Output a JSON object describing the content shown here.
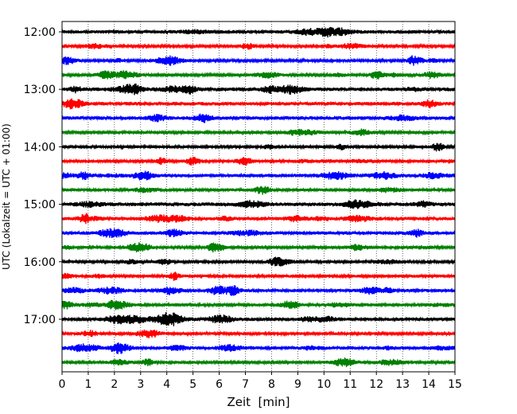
{
  "chart_data": {
    "type": "line",
    "title": "",
    "xlabel": "Zeit  [min]",
    "ylabel": "UTC (Lokalzeit = UTC + 01:00)",
    "xlim": [
      0,
      15
    ],
    "x_ticks": [
      0,
      1,
      2,
      3,
      4,
      5,
      6,
      7,
      8,
      9,
      10,
      11,
      12,
      13,
      14,
      15
    ],
    "x_tick_labels": [
      "0",
      "1",
      "2",
      "3",
      "4",
      "5",
      "6",
      "7",
      "8",
      "9",
      "10",
      "11",
      "12",
      "13",
      "14",
      "15"
    ],
    "y_tick_labels": [
      "12:00",
      "13:00",
      "14:00",
      "15:00",
      "16:00",
      "17:00"
    ],
    "y_tick_trace_index": [
      0,
      4,
      8,
      12,
      16,
      20
    ],
    "grid": "vertical dotted",
    "trace_minutes": 15,
    "trace_colors": [
      "#000000",
      "#ff0000",
      "#0000ff",
      "#008000"
    ],
    "traces": [
      {
        "start": "12:00",
        "color": "#000000"
      },
      {
        "start": "12:15",
        "color": "#ff0000"
      },
      {
        "start": "12:30",
        "color": "#0000ff"
      },
      {
        "start": "12:45",
        "color": "#008000"
      },
      {
        "start": "13:00",
        "color": "#000000"
      },
      {
        "start": "13:15",
        "color": "#ff0000"
      },
      {
        "start": "13:30",
        "color": "#0000ff"
      },
      {
        "start": "13:45",
        "color": "#008000"
      },
      {
        "start": "14:00",
        "color": "#000000"
      },
      {
        "start": "14:15",
        "color": "#ff0000"
      },
      {
        "start": "14:30",
        "color": "#0000ff"
      },
      {
        "start": "14:45",
        "color": "#008000"
      },
      {
        "start": "15:00",
        "color": "#000000"
      },
      {
        "start": "15:15",
        "color": "#ff0000"
      },
      {
        "start": "15:30",
        "color": "#0000ff"
      },
      {
        "start": "15:45",
        "color": "#008000"
      },
      {
        "start": "16:00",
        "color": "#000000"
      },
      {
        "start": "16:15",
        "color": "#ff0000"
      },
      {
        "start": "16:30",
        "color": "#0000ff"
      },
      {
        "start": "16:45",
        "color": "#008000"
      },
      {
        "start": "17:00",
        "color": "#000000"
      },
      {
        "start": "17:15",
        "color": "#ff0000"
      },
      {
        "start": "17:30",
        "color": "#0000ff"
      },
      {
        "start": "17:45",
        "color": "#008000"
      }
    ]
  }
}
